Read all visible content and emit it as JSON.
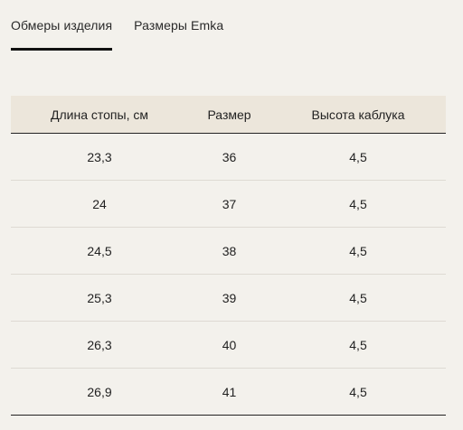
{
  "tabs": [
    {
      "label": "Обмеры изделия",
      "active": true
    },
    {
      "label": "Размеры Emka",
      "active": false
    }
  ],
  "table": {
    "headers": [
      "Длина стопы, см",
      "Размер",
      "Высота каблука"
    ],
    "rows": [
      [
        "23,3",
        "36",
        "4,5"
      ],
      [
        "24",
        "37",
        "4,5"
      ],
      [
        "24,5",
        "38",
        "4,5"
      ],
      [
        "25,3",
        "39",
        "4,5"
      ],
      [
        "26,3",
        "40",
        "4,5"
      ],
      [
        "26,9",
        "41",
        "4,5"
      ]
    ]
  }
}
